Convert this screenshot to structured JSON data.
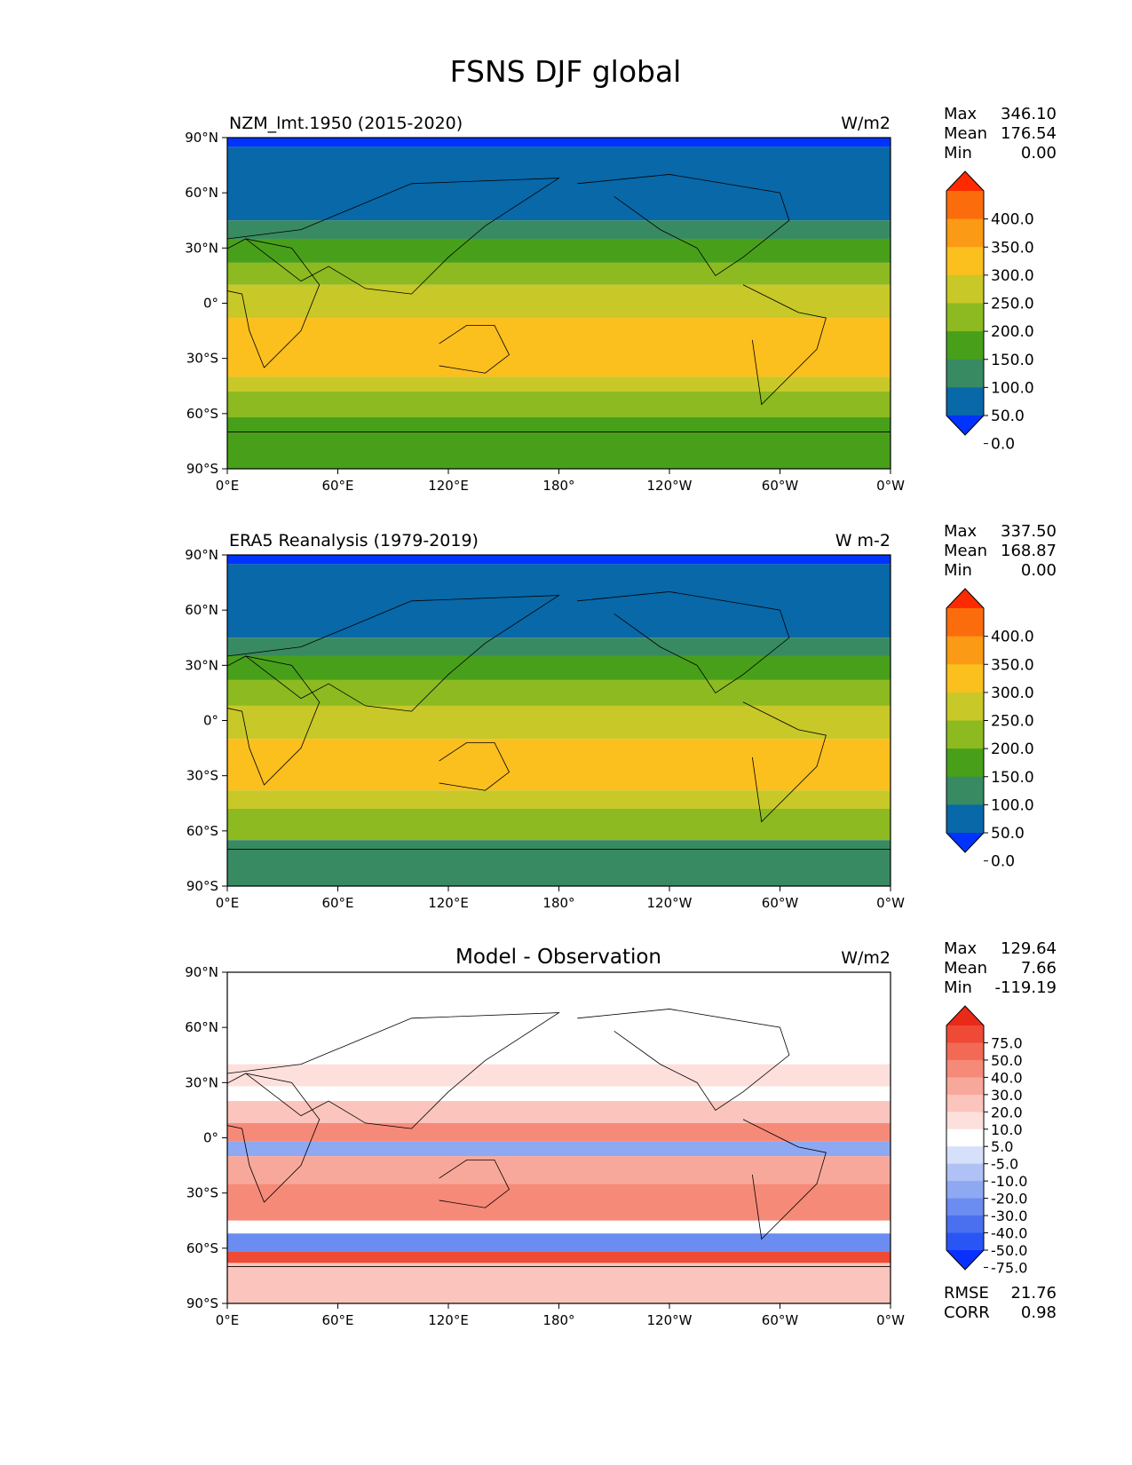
{
  "figure": {
    "title": "FSNS DJF global"
  },
  "axes": {
    "lat_labels": [
      "90°N",
      "60°N",
      "30°N",
      "0°",
      "30°S",
      "60°S",
      "90°S"
    ],
    "lon_labels": [
      "0°E",
      "60°E",
      "120°E",
      "180°",
      "120°W",
      "60°W",
      "0°W"
    ]
  },
  "panels": [
    {
      "title_left": "NZM_lmt.1950 (2015-2020)",
      "title_center": "",
      "units": "W/m2",
      "stats": {
        "max_label": "Max",
        "max": "346.10",
        "mean_label": "Mean",
        "mean": "176.54",
        "min_label": "Min",
        "min": "0.00"
      },
      "colorbar": {
        "ticks": [
          "400.0",
          "350.0",
          "300.0",
          "250.0",
          "200.0",
          "150.0",
          "100.0",
          "50.0",
          "0.0"
        ],
        "colors": [
          "#0033ff",
          "#0868a8",
          "#388a62",
          "#48a01a",
          "#8cba20",
          "#c8c828",
          "#fbbf1e",
          "#fb9a14",
          "#fb6d0c",
          "#ff2a00"
        ]
      },
      "bands": [
        {
          "lat": 90,
          "level": 0
        },
        {
          "lat": 85,
          "level": 1
        },
        {
          "lat": 45,
          "level": 2
        },
        {
          "lat": 35,
          "level": 3
        },
        {
          "lat": 22,
          "level": 4
        },
        {
          "lat": 10,
          "level": 5
        },
        {
          "lat": -8,
          "level": 6
        },
        {
          "lat": -40,
          "level": 5
        },
        {
          "lat": -48,
          "level": 4
        },
        {
          "lat": -62,
          "level": 3
        }
      ]
    },
    {
      "title_left": "ERA5 Reanalysis (1979-2019)",
      "title_center": "",
      "units": "W m-2",
      "stats": {
        "max_label": "Max",
        "max": "337.50",
        "mean_label": "Mean",
        "mean": "168.87",
        "min_label": "Min",
        "min": "0.00"
      },
      "colorbar": {
        "ticks": [
          "400.0",
          "350.0",
          "300.0",
          "250.0",
          "200.0",
          "150.0",
          "100.0",
          "50.0",
          "0.0"
        ],
        "colors": [
          "#0033ff",
          "#0868a8",
          "#388a62",
          "#48a01a",
          "#8cba20",
          "#c8c828",
          "#fbbf1e",
          "#fb9a14",
          "#fb6d0c",
          "#ff2a00"
        ]
      },
      "bands": [
        {
          "lat": 90,
          "level": 0
        },
        {
          "lat": 85,
          "level": 1
        },
        {
          "lat": 45,
          "level": 2
        },
        {
          "lat": 35,
          "level": 3
        },
        {
          "lat": 22,
          "level": 4
        },
        {
          "lat": 8,
          "level": 5
        },
        {
          "lat": -10,
          "level": 6
        },
        {
          "lat": -38,
          "level": 5
        },
        {
          "lat": -48,
          "level": 4
        },
        {
          "lat": -65,
          "level": 2
        }
      ]
    },
    {
      "title_left": "",
      "title_center": "Model - Observation",
      "units": "W/m2",
      "stats": {
        "max_label": "Max",
        "max": "129.64",
        "mean_label": "Mean",
        "mean": "7.66",
        "min_label": "Min",
        "min": "-119.19"
      },
      "extra": {
        "rmse_label": "RMSE",
        "rmse": "21.76",
        "corr_label": "CORR",
        "corr": "0.98"
      },
      "colorbar": {
        "ticks": [
          "75.0",
          "50.0",
          "40.0",
          "30.0",
          "20.0",
          "10.0",
          "5.0",
          "-5.0",
          "-10.0",
          "-20.0",
          "-30.0",
          "-40.0",
          "-50.0",
          "-75.0"
        ],
        "colors": [
          "#0a30ff",
          "#2a55f5",
          "#4a70f0",
          "#6b8cf0",
          "#8ea8f2",
          "#b0c2f5",
          "#d6e0fa",
          "#ffffff",
          "#fde0dc",
          "#fbc4bc",
          "#f8a89a",
          "#f68a78",
          "#f26a56",
          "#ee4a36",
          "#e92a18"
        ]
      },
      "bands": [
        {
          "lat": 90,
          "level": 7
        },
        {
          "lat": 40,
          "level": 8
        },
        {
          "lat": 28,
          "level": 7
        },
        {
          "lat": 20,
          "level": 9
        },
        {
          "lat": 8,
          "level": 11
        },
        {
          "lat": -2,
          "level": 4
        },
        {
          "lat": -10,
          "level": 10
        },
        {
          "lat": -25,
          "level": 11
        },
        {
          "lat": -45,
          "level": 7
        },
        {
          "lat": -52,
          "level": 3
        },
        {
          "lat": -62,
          "level": 13
        },
        {
          "lat": -68,
          "level": 9
        }
      ]
    }
  ]
}
